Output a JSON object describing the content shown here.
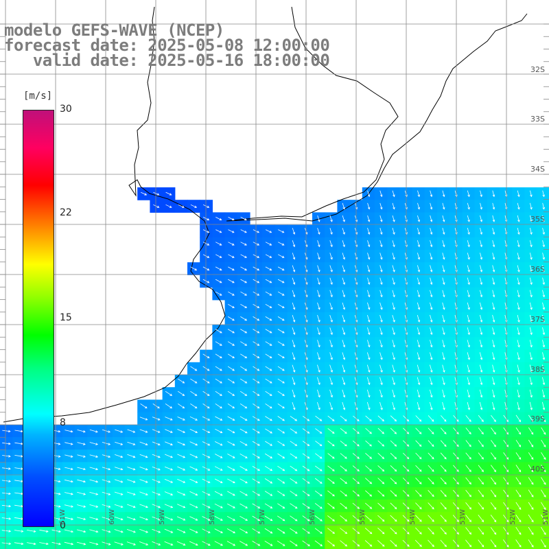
{
  "title": {
    "line1": "modelo GEFS-WAVE (NCEP)",
    "line2": "forecast date: 2025-05-08 12:00:00",
    "line3": "   valid date: 2025-05-16 18:00:00"
  },
  "colorbar": {
    "unit": "[m/s]",
    "ticks": [
      "30",
      "22",
      "15",
      "8",
      "0"
    ],
    "colors": [
      "#0000ff",
      "#00b4ff",
      "#00ffff",
      "#00ff00",
      "#ffff00",
      "#ff0000",
      "#c0107a"
    ]
  },
  "lat_labels": [
    "32S",
    "33S",
    "34S",
    "35S",
    "36S",
    "37S",
    "38S",
    "39S",
    "40S"
  ],
  "lon_labels": [
    "61W",
    "60W",
    "59W",
    "58W",
    "57W",
    "56W",
    "55W",
    "54W",
    "53W",
    "52W",
    "51W"
  ],
  "map": {
    "field": "wind speed",
    "arrows": "direction field",
    "land_color": "#ffffff",
    "grid_color": "#888888",
    "coast_color": "#000000"
  }
}
